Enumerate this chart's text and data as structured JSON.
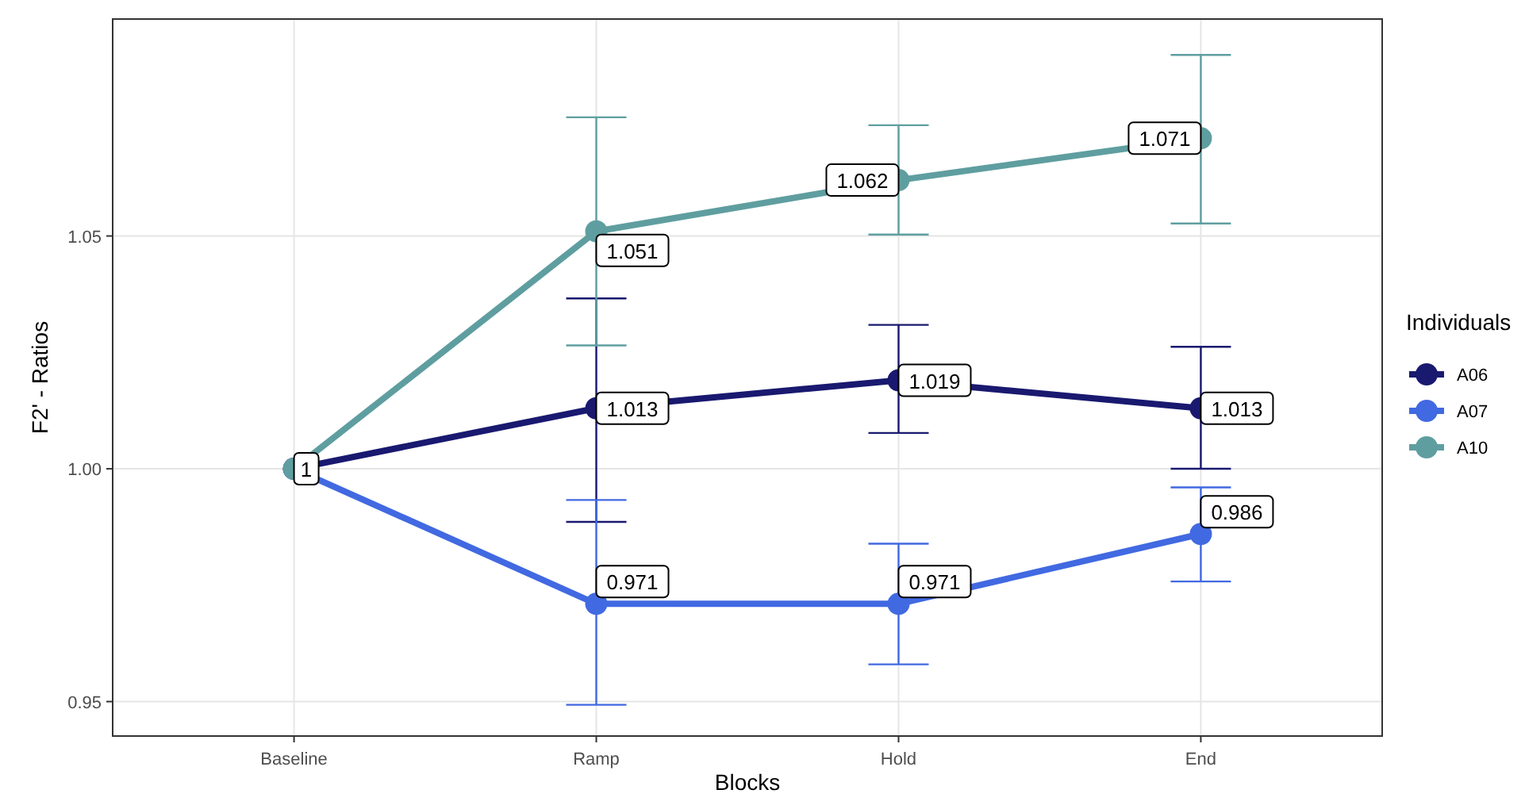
{
  "chart_data": {
    "type": "line",
    "xlabel": "Blocks",
    "ylabel": "F2' - Ratios",
    "legend_title": "Individuals",
    "legend": "right",
    "grid": true,
    "marker": "circle",
    "line_style": "solid",
    "categories": [
      "Baseline",
      "Ramp",
      "Hold",
      "End"
    ],
    "ylim": [
      0.9426,
      1.0966
    ],
    "yticks": [
      0.95,
      {
        "value": 1,
        "label": "1.00"
      },
      1.05
    ],
    "series": [
      {
        "name": "A06",
        "color": "#191970",
        "values": [
          1,
          1.013,
          1.019,
          1.013
        ],
        "errors": [
          null,
          [
            0.9886,
            1.0366
          ],
          [
            1.0077,
            1.0309
          ],
          [
            1.0,
            1.0262
          ]
        ],
        "value_labels": [
          null,
          "1.013",
          "1.019",
          "1.013"
        ]
      },
      {
        "name": "A07",
        "color": "#4169e1",
        "values": [
          1,
          0.971,
          0.971,
          0.986
        ],
        "errors": [
          null,
          [
            0.9493,
            0.9933
          ],
          [
            0.958,
            0.9839
          ],
          [
            0.9758,
            0.996
          ]
        ],
        "value_labels": [
          null,
          "0.971",
          "0.971",
          "0.986"
        ]
      },
      {
        "name": "A10",
        "color": "#5f9ea0",
        "values": [
          1,
          1.051,
          1.062,
          1.071
        ],
        "errors": [
          null,
          [
            1.0265,
            1.0755
          ],
          [
            1.0503,
            1.0738
          ],
          [
            1.0527,
            1.0889
          ]
        ],
        "value_labels": [
          "1",
          "1.051",
          "1.062",
          "1.071"
        ]
      }
    ]
  }
}
